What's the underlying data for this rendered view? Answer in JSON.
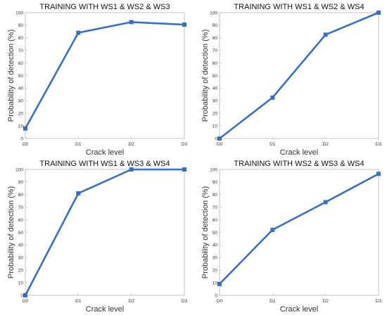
{
  "colors": {
    "series": "#3a6fbd",
    "axis": "#b5b5b5",
    "text": "#333333"
  },
  "chart_data": [
    {
      "type": "line",
      "title": "TRAINING WITH WS1 & WS2 & WS3",
      "xlabel": "Crack level",
      "ylabel": "Probability of detection (%)",
      "categories": [
        "D0",
        "D1",
        "D2",
        "D3"
      ],
      "values": [
        8,
        84,
        92.5,
        90.5
      ],
      "ylim": [
        0,
        100
      ],
      "yticks": [
        "0",
        "10",
        "20",
        "30",
        "40",
        "50",
        "60",
        "70",
        "80",
        "90",
        "100"
      ],
      "grid": false,
      "marker": "square"
    },
    {
      "type": "line",
      "title": "TRAINING WITH WS1 & WS2 & WS4",
      "xlabel": "Crack level",
      "ylabel": "Probability of detection (%)",
      "categories": [
        "D0",
        "D1",
        "D2",
        "D3"
      ],
      "values": [
        0,
        32.5,
        82.5,
        100
      ],
      "ylim": [
        0,
        100
      ],
      "yticks": [
        "0",
        "10",
        "20",
        "30",
        "40",
        "50",
        "60",
        "70",
        "80",
        "90",
        "100"
      ],
      "grid": false,
      "marker": "square"
    },
    {
      "type": "line",
      "title": "TRAINING WITH WS1 & WS3 & WS4",
      "xlabel": "Crack level",
      "ylabel": "Probability of detection (%)",
      "categories": [
        "D0",
        "D1",
        "D2",
        "D3"
      ],
      "values": [
        0,
        81,
        100,
        100
      ],
      "ylim": [
        0,
        100
      ],
      "yticks": [
        "0",
        "10",
        "20",
        "30",
        "40",
        "50",
        "60",
        "70",
        "80",
        "90",
        "100"
      ],
      "grid": false,
      "marker": "square"
    },
    {
      "type": "line",
      "title": "TRAINING WITH WS2 & WS3 & WS4",
      "xlabel": "Crack level",
      "ylabel": "Probability of detection (%)",
      "categories": [
        "D0",
        "D1",
        "D2",
        "D3"
      ],
      "values": [
        9,
        52,
        74,
        96.5
      ],
      "ylim": [
        0,
        100
      ],
      "yticks": [
        "0",
        "10",
        "20",
        "30",
        "40",
        "50",
        "60",
        "70",
        "80",
        "90",
        "100"
      ],
      "grid": false,
      "marker": "square"
    }
  ]
}
